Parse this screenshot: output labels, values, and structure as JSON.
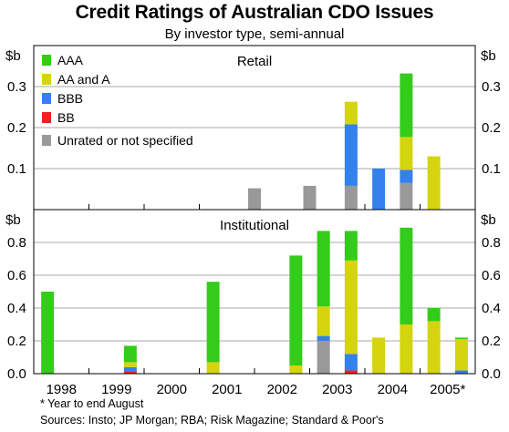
{
  "title": "Credit Ratings of Australian CDO Issues",
  "subtitle": "By investor type, semi-annual",
  "footnote": "* Year to end August",
  "sources": "Sources: Insto; JP Morgan; RBA; Risk Magazine; Standard & Poor's",
  "colors": {
    "AAA": "#33cc1a",
    "AA and A": "#d4d40f",
    "BBB": "#3380ee",
    "BB": "#ee2222",
    "Unrated or not specified": "#999999"
  },
  "chart_data": [
    {
      "type": "bar",
      "stacked": true,
      "panel_title": "Retail",
      "unit": "$b",
      "ylim": [
        0,
        0.4
      ],
      "yticks": [
        "0.1",
        "0.2",
        "0.3"
      ],
      "xlabels": [
        "1998",
        "1999",
        "2000",
        "2001",
        "2002",
        "2003",
        "2004",
        "2005*"
      ],
      "legend": [
        "AAA",
        "AA and A",
        "BBB",
        "BB",
        "Unrated or not specified"
      ],
      "legend_position": "top-left",
      "bars": [
        {
          "period": 7.5,
          "Unrated or not specified": 0.052
        },
        {
          "period": 9.5,
          "Unrated or not specified": 0.058
        },
        {
          "period": 11.0,
          "Unrated or not specified": 0.058,
          "BBB": 0.15,
          "AA and A": 0.055
        },
        {
          "period": 12.0,
          "BBB": 0.1
        },
        {
          "period": 13.0,
          "Unrated or not specified": 0.065,
          "BBB": 0.032,
          "AA and A": 0.08,
          "AAA": 0.155
        },
        {
          "period": 14.0,
          "AA and A": 0.13
        }
      ]
    },
    {
      "type": "bar",
      "stacked": true,
      "panel_title": "Institutional",
      "unit": "$b",
      "ylim": [
        0,
        1.0
      ],
      "yticks": [
        "0.0",
        "0.2",
        "0.4",
        "0.6",
        "0.8"
      ],
      "xlabels": [
        "1998",
        "1999",
        "2000",
        "2001",
        "2002",
        "2003",
        "2004",
        "2005*"
      ],
      "bars": [
        {
          "period": 0.0,
          "AAA": 0.5
        },
        {
          "period": 3.0,
          "BB": 0.015,
          "BBB": 0.025,
          "AA and A": 0.03,
          "AAA": 0.1
        },
        {
          "period": 6.0,
          "AA and A": 0.07,
          "AAA": 0.49
        },
        {
          "period": 9.0,
          "AA and A": 0.05,
          "AAA": 0.67
        },
        {
          "period": 10.0,
          "Unrated or not specified": 0.2,
          "BBB": 0.03,
          "AA and A": 0.18,
          "AAA": 0.46
        },
        {
          "period": 11.0,
          "BB": 0.02,
          "BBB": 0.1,
          "AA and A": 0.57,
          "AAA": 0.18
        },
        {
          "period": 12.0,
          "AA and A": 0.22
        },
        {
          "period": 13.0,
          "AA and A": 0.3,
          "AAA": 0.59
        },
        {
          "period": 14.0,
          "AA and A": 0.32,
          "AAA": 0.08
        },
        {
          "period": 15.0,
          "BBB": 0.02,
          "AA and A": 0.19,
          "AAA": 0.01
        }
      ]
    }
  ]
}
